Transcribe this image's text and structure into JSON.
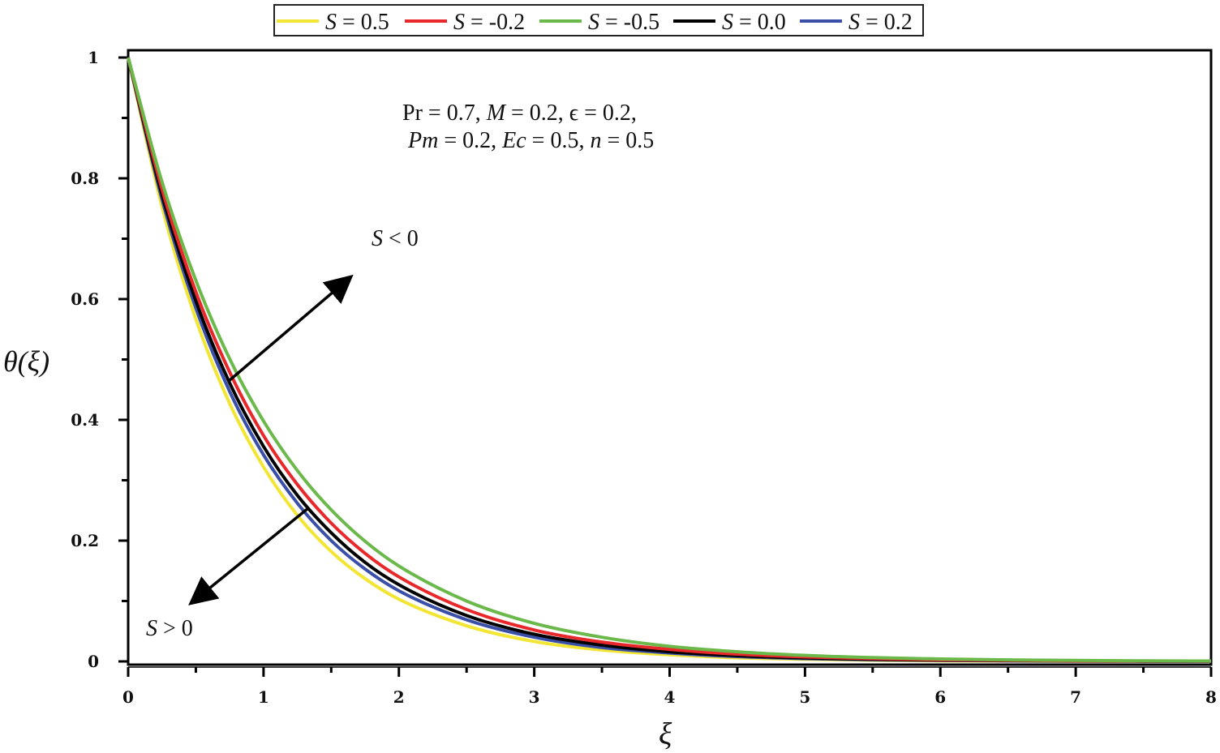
{
  "chart_data": {
    "type": "line",
    "xlabel": "ξ",
    "ylabel": "θ(ξ)",
    "xlim": [
      0,
      8
    ],
    "ylim": [
      0,
      1
    ],
    "x_ticks": [
      "0",
      "1",
      "2",
      "3",
      "4",
      "5",
      "6",
      "7",
      "8"
    ],
    "y_ticks": [
      "0",
      "0.2",
      "0.4",
      "0.6",
      "0.8",
      "1"
    ],
    "grid": false,
    "legend_position": "top-center",
    "x": [
      0,
      0.25,
      0.5,
      0.75,
      1,
      1.25,
      1.5,
      1.75,
      2,
      2.5,
      3,
      3.5,
      4,
      4.5,
      5,
      5.5,
      6,
      6.5,
      7,
      7.5,
      8
    ],
    "series": [
      {
        "name": "S = 0.5",
        "color": "#f2e534",
        "values": [
          1,
          0.753,
          0.567,
          0.427,
          0.322,
          0.242,
          0.182,
          0.137,
          0.103,
          0.059,
          0.033,
          0.019,
          0.011,
          0.006,
          0.0035,
          0.002,
          0.001,
          0.0006,
          0.0003,
          0.0002,
          0.0001
        ]
      },
      {
        "name": "S = -0.2",
        "color": "#e8282b",
        "values": [
          1,
          0.782,
          0.612,
          0.479,
          0.374,
          0.293,
          0.229,
          0.179,
          0.14,
          0.086,
          0.052,
          0.032,
          0.02,
          0.012,
          0.0073,
          0.0045,
          0.0027,
          0.0017,
          0.001,
          0.0006,
          0.0004
        ]
      },
      {
        "name": "S = -0.5",
        "color": "#6ab94a",
        "values": [
          1,
          0.794,
          0.631,
          0.501,
          0.398,
          0.316,
          0.251,
          0.199,
          0.158,
          0.1,
          0.063,
          0.04,
          0.025,
          0.016,
          0.01,
          0.0063,
          0.004,
          0.0025,
          0.0016,
          0.001,
          0.0006
        ]
      },
      {
        "name": "S = 0.0",
        "color": "#000000",
        "values": [
          1,
          0.773,
          0.597,
          0.461,
          0.356,
          0.275,
          0.213,
          0.164,
          0.127,
          0.076,
          0.045,
          0.027,
          0.016,
          0.0096,
          0.0057,
          0.0034,
          0.002,
          0.0012,
          0.0007,
          0.0004,
          0.0003
        ]
      },
      {
        "name": "S = 0.2",
        "color": "#3a4fa8",
        "values": [
          1,
          0.765,
          0.585,
          0.447,
          0.342,
          0.262,
          0.2,
          0.153,
          0.117,
          0.069,
          0.04,
          0.023,
          0.014,
          0.008,
          0.0047,
          0.0027,
          0.0016,
          0.0009,
          0.0005,
          0.0003,
          0.0002
        ]
      }
    ],
    "annotations": {
      "params_line1": "Pr = 0.7, M = 0.2, ϵ = 0.2,",
      "params_line2": "Pm = 0.2, Ec = 0.5, n = 0.5",
      "arrow_up_label": "S < 0",
      "arrow_down_label": "S > 0"
    }
  }
}
